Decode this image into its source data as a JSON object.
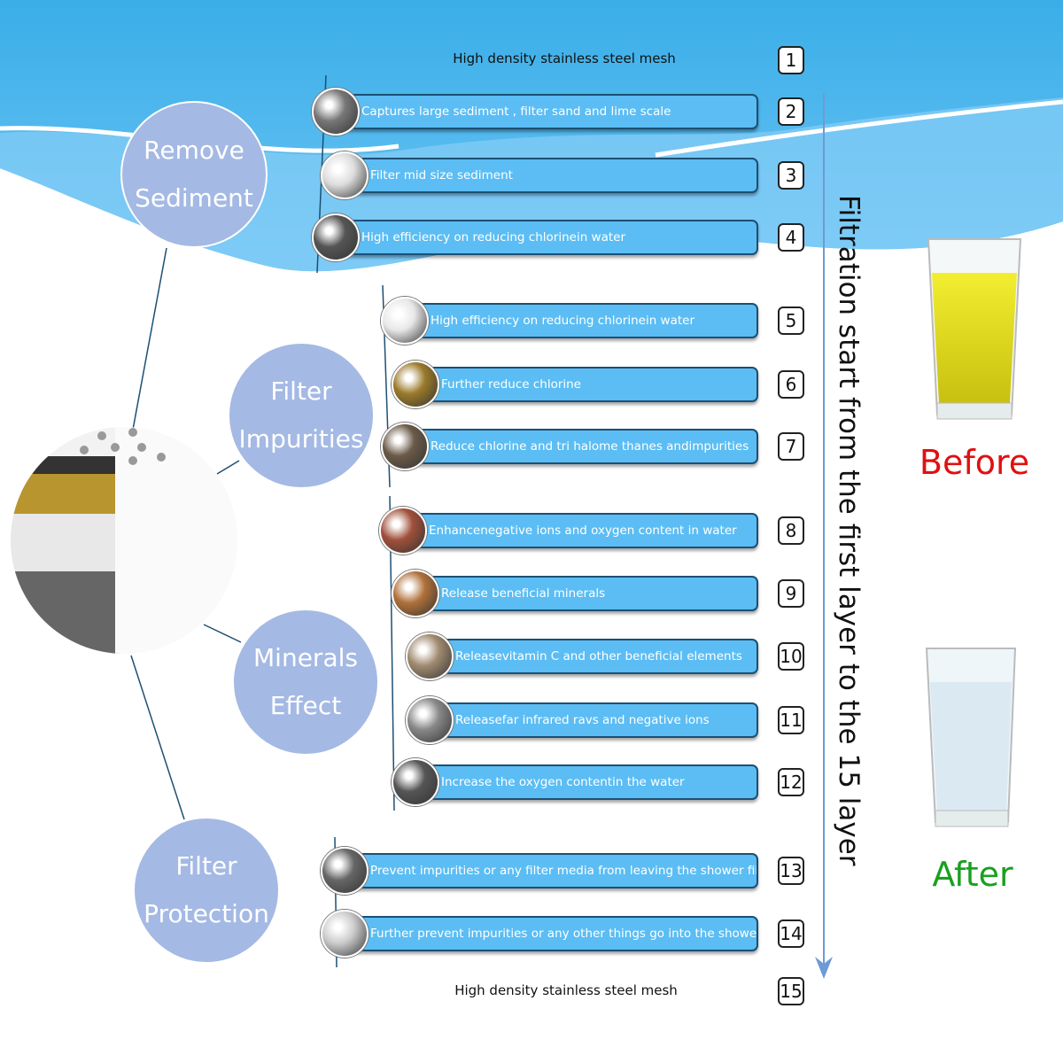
{
  "top_layer": {
    "number": "1",
    "label": "High density stainless steel mesh"
  },
  "bottom_layer": {
    "number": "15",
    "label": "High density stainless steel mesh"
  },
  "layers": [
    {
      "number": "2",
      "label": "Captures large sediment , filter sand and lime scale",
      "media": "gray-mesh",
      "color": "#777777"
    },
    {
      "number": "3",
      "label": "Filter mid size sediment",
      "media": "white-cotton",
      "color": "#dddddd"
    },
    {
      "number": "4",
      "label": "High efficiency on reducing chlorinein water",
      "media": "black-mesh",
      "color": "#555555"
    },
    {
      "number": "5",
      "label": "High efficiency on reducing chlorinein water",
      "media": "white-balls",
      "color": "#e8e8e8"
    },
    {
      "number": "6",
      "label": "Further reduce chlorine",
      "media": "gold-granules",
      "color": "#9a7a2a"
    },
    {
      "number": "7",
      "label": "Reduce chlorine and tri halome thanes andimpurities",
      "media": "carbon-mix",
      "color": "#6a5a48"
    },
    {
      "number": "8",
      "label": "Enhancenegative ions and oxygen content in water",
      "media": "red-ceramic-balls",
      "color": "#a0503a"
    },
    {
      "number": "9",
      "label": "Release beneficial minerals",
      "media": "brown-balls",
      "color": "#b0703a"
    },
    {
      "number": "10",
      "label": "Releasevitamin C and other beneficial elements",
      "media": "mixed-balls",
      "color": "#a08a70"
    },
    {
      "number": "11",
      "label": "Releasefar infrared ravs and negative ions",
      "media": "gray-stones",
      "color": "#888888"
    },
    {
      "number": "12",
      "label": "Increase the oxygen contentin the water",
      "media": "dark-stones",
      "color": "#555555"
    },
    {
      "number": "13",
      "label": "Prevent impurities or any filter media from leaving the shower filter",
      "media": "black-mesh",
      "color": "#666666"
    },
    {
      "number": "14",
      "label": "Further prevent impurities or any other things go into the shower head",
      "media": "white-cotton",
      "color": "#cccccc"
    }
  ],
  "categories": [
    {
      "line1": "Remove",
      "line2": "Sediment"
    },
    {
      "line1": "Filter",
      "line2": "Impurities"
    },
    {
      "line1": "Minerals",
      "line2": "Effect"
    },
    {
      "line1": "Filter",
      "line2": "Protection"
    }
  ],
  "flow_text": "Filtration start from the first layer to the 15 layer",
  "before": {
    "label": "Before",
    "color": "#e01010"
  },
  "after": {
    "label": "After",
    "color": "#18a020"
  },
  "colors": {
    "bar": "#5bbdf4",
    "category": "#a4b9e4",
    "sky": "#3aaee8"
  }
}
